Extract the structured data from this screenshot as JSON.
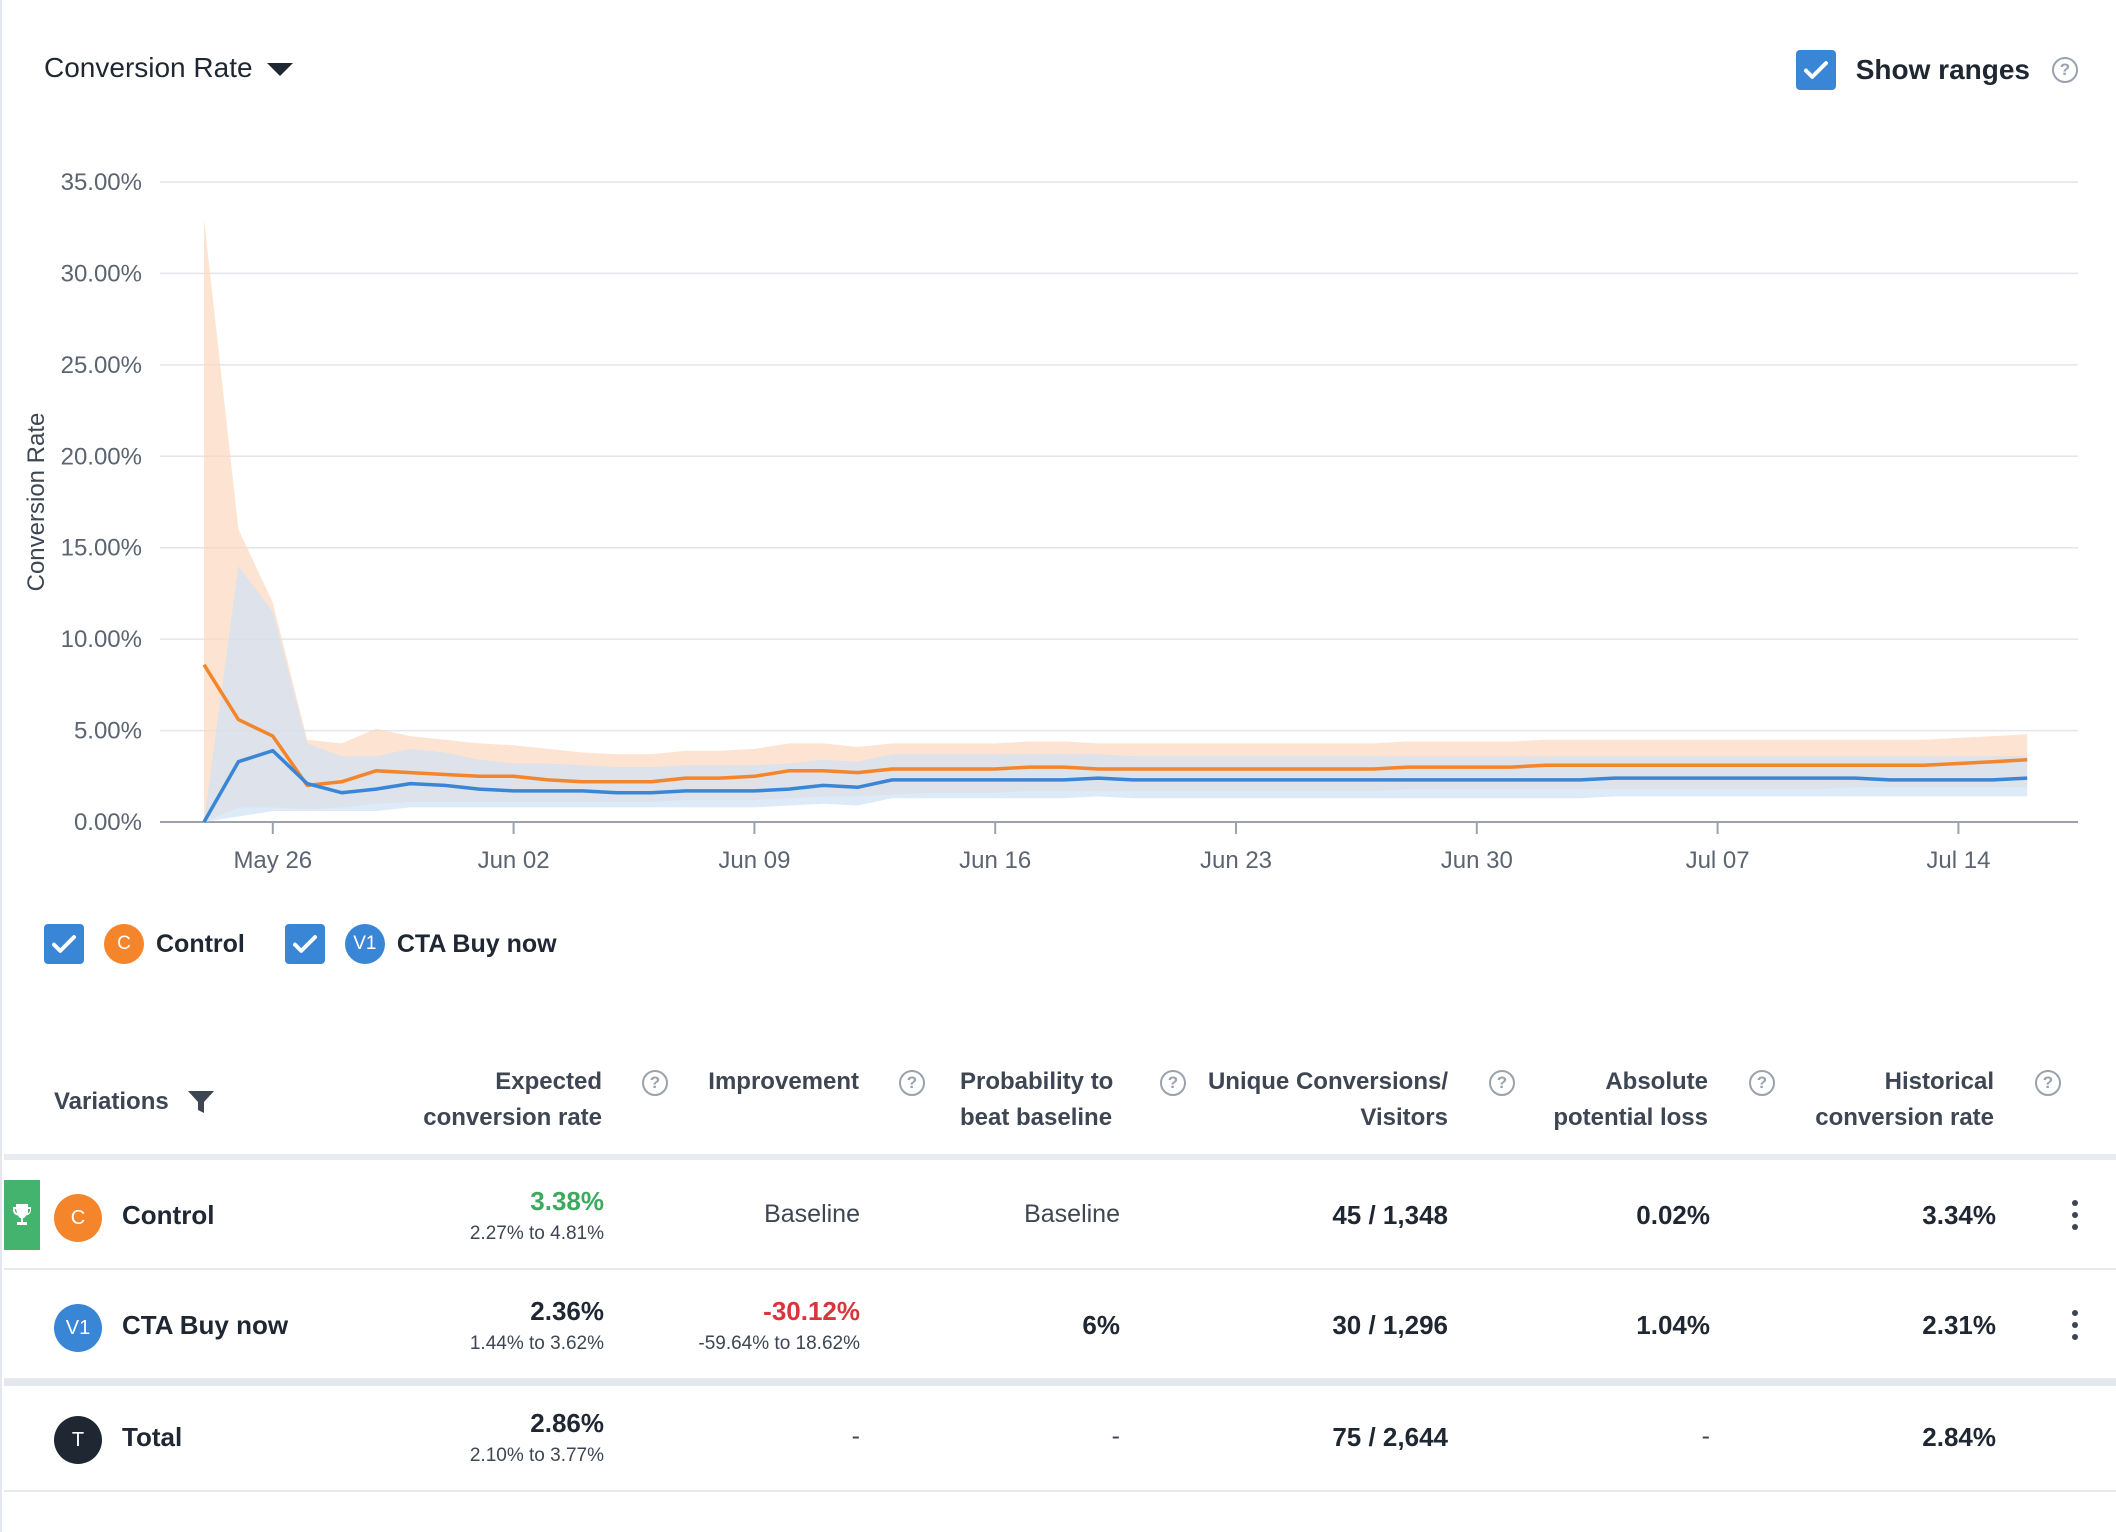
{
  "header": {
    "metric_label": "Conversion Rate",
    "show_ranges_label": "Show ranges",
    "show_ranges_checked": true
  },
  "legend": [
    {
      "badge": "C",
      "name": "Control",
      "color": "#f5852a",
      "checked": true
    },
    {
      "badge": "V1",
      "name": "CTA Buy now",
      "color": "#3a86d6",
      "checked": true
    }
  ],
  "chart_data": {
    "type": "line",
    "ylabel": "Conversion Rate",
    "xlabel": "",
    "ylim": [
      0,
      35
    ],
    "yticks": [
      "0.00%",
      "5.00%",
      "10.00%",
      "15.00%",
      "20.00%",
      "25.00%",
      "30.00%",
      "35.00%"
    ],
    "ytick_values": [
      0,
      5,
      10,
      15,
      20,
      25,
      30,
      35
    ],
    "x": [
      "May 24",
      "May 25",
      "May 26",
      "May 27",
      "May 28",
      "May 29",
      "May 30",
      "May 31",
      "Jun 01",
      "Jun 02",
      "Jun 03",
      "Jun 04",
      "Jun 05",
      "Jun 06",
      "Jun 07",
      "Jun 08",
      "Jun 09",
      "Jun 10",
      "Jun 11",
      "Jun 12",
      "Jun 13",
      "Jun 14",
      "Jun 15",
      "Jun 16",
      "Jun 17",
      "Jun 18",
      "Jun 19",
      "Jun 20",
      "Jun 21",
      "Jun 22",
      "Jun 23",
      "Jun 24",
      "Jun 25",
      "Jun 26",
      "Jun 27",
      "Jun 28",
      "Jun 29",
      "Jun 30",
      "Jul 01",
      "Jul 02",
      "Jul 03",
      "Jul 04",
      "Jul 05",
      "Jul 06",
      "Jul 07",
      "Jul 08",
      "Jul 09",
      "Jul 10",
      "Jul 11",
      "Jul 12",
      "Jul 13",
      "Jul 14",
      "Jul 15",
      "Jul 16"
    ],
    "xticks": [
      "May 26",
      "Jun 02",
      "Jun 09",
      "Jun 16",
      "Jun 23",
      "Jun 30",
      "Jul 07",
      "Jul 14"
    ],
    "grid": true,
    "show_ranges": true,
    "series": [
      {
        "name": "Control",
        "color": "#f5852a",
        "band_color": "#fcd9bf",
        "values": [
          8.6,
          5.6,
          4.7,
          2.0,
          2.2,
          2.8,
          2.7,
          2.6,
          2.5,
          2.5,
          2.3,
          2.2,
          2.2,
          2.2,
          2.4,
          2.4,
          2.5,
          2.8,
          2.8,
          2.7,
          2.9,
          2.9,
          2.9,
          2.9,
          3.0,
          3.0,
          2.9,
          2.9,
          2.9,
          2.9,
          2.9,
          2.9,
          2.9,
          2.9,
          2.9,
          3.0,
          3.0,
          3.0,
          3.0,
          3.1,
          3.1,
          3.1,
          3.1,
          3.1,
          3.1,
          3.1,
          3.1,
          3.1,
          3.1,
          3.1,
          3.1,
          3.2,
          3.3,
          3.4
        ],
        "lower": [
          0.0,
          0.8,
          0.8,
          0.7,
          0.8,
          1.0,
          1.1,
          1.1,
          1.1,
          1.1,
          1.1,
          1.1,
          1.1,
          1.1,
          1.2,
          1.2,
          1.2,
          1.3,
          1.4,
          1.4,
          1.5,
          1.6,
          1.6,
          1.6,
          1.7,
          1.7,
          1.7,
          1.7,
          1.7,
          1.7,
          1.7,
          1.7,
          1.7,
          1.7,
          1.7,
          1.8,
          1.8,
          1.8,
          1.8,
          1.8,
          1.8,
          1.8,
          1.8,
          1.8,
          1.8,
          1.8,
          1.8,
          1.8,
          1.9,
          1.9,
          1.9,
          1.9,
          1.9,
          1.9
        ],
        "upper": [
          33.0,
          16.0,
          12.0,
          4.5,
          4.3,
          5.1,
          4.7,
          4.5,
          4.3,
          4.2,
          4.0,
          3.8,
          3.7,
          3.7,
          3.9,
          3.9,
          4.0,
          4.3,
          4.3,
          4.1,
          4.3,
          4.3,
          4.3,
          4.3,
          4.4,
          4.4,
          4.3,
          4.3,
          4.3,
          4.3,
          4.3,
          4.3,
          4.3,
          4.3,
          4.3,
          4.4,
          4.4,
          4.4,
          4.4,
          4.5,
          4.5,
          4.5,
          4.5,
          4.5,
          4.5,
          4.5,
          4.5,
          4.5,
          4.5,
          4.5,
          4.5,
          4.6,
          4.7,
          4.8
        ]
      },
      {
        "name": "CTA Buy now",
        "color": "#3a86d6",
        "band_color": "#cfe1f5",
        "values": [
          0.0,
          3.3,
          3.9,
          2.1,
          1.6,
          1.8,
          2.1,
          2.0,
          1.8,
          1.7,
          1.7,
          1.7,
          1.6,
          1.6,
          1.7,
          1.7,
          1.7,
          1.8,
          2.0,
          1.9,
          2.3,
          2.3,
          2.3,
          2.3,
          2.3,
          2.3,
          2.4,
          2.3,
          2.3,
          2.3,
          2.3,
          2.3,
          2.3,
          2.3,
          2.3,
          2.3,
          2.3,
          2.3,
          2.3,
          2.3,
          2.3,
          2.4,
          2.4,
          2.4,
          2.4,
          2.4,
          2.4,
          2.4,
          2.4,
          2.3,
          2.3,
          2.3,
          2.3,
          2.4
        ],
        "lower": [
          0.0,
          0.3,
          0.6,
          0.6,
          0.6,
          0.6,
          0.8,
          0.8,
          0.8,
          0.8,
          0.8,
          0.8,
          0.8,
          0.8,
          0.8,
          0.8,
          0.8,
          0.9,
          1.0,
          0.9,
          1.3,
          1.3,
          1.3,
          1.3,
          1.3,
          1.3,
          1.4,
          1.3,
          1.3,
          1.3,
          1.3,
          1.3,
          1.3,
          1.3,
          1.3,
          1.3,
          1.3,
          1.3,
          1.3,
          1.3,
          1.3,
          1.4,
          1.4,
          1.4,
          1.4,
          1.4,
          1.4,
          1.4,
          1.4,
          1.4,
          1.4,
          1.4,
          1.4,
          1.4
        ],
        "upper": [
          0.0,
          14.0,
          11.5,
          4.3,
          3.6,
          3.6,
          4.0,
          3.8,
          3.4,
          3.2,
          3.2,
          3.1,
          3.0,
          3.0,
          3.1,
          3.1,
          3.1,
          3.2,
          3.4,
          3.3,
          3.7,
          3.7,
          3.7,
          3.7,
          3.7,
          3.7,
          3.7,
          3.6,
          3.6,
          3.6,
          3.6,
          3.6,
          3.6,
          3.6,
          3.6,
          3.6,
          3.6,
          3.6,
          3.6,
          3.6,
          3.6,
          3.6,
          3.6,
          3.6,
          3.6,
          3.6,
          3.6,
          3.6,
          3.6,
          3.6,
          3.6,
          3.6,
          3.6,
          3.6
        ]
      }
    ]
  },
  "table": {
    "headers": {
      "variations": "Variations",
      "expected_1": "Expected",
      "expected_2": "conversion rate",
      "improvement": "Improvement",
      "probability_1": "Probability to",
      "probability_2": "beat baseline",
      "unique_1": "Unique Conversions/",
      "unique_2": "Visitors",
      "loss_1": "Absolute",
      "loss_2": "potential loss",
      "historical_1": "Historical",
      "historical_2": "conversion rate"
    },
    "rows": [
      {
        "badge": "C",
        "badge_color": "#f5852a",
        "name": "Control",
        "winner": true,
        "expected": "3.38%",
        "expected_range": "2.27% to 4.81%",
        "improvement": "Baseline",
        "improvement_range": "",
        "probability": "Baseline",
        "conversions": "45 / 1,348",
        "loss": "0.02%",
        "historical": "3.34%"
      },
      {
        "badge": "V1",
        "badge_color": "#3a86d6",
        "name": "CTA Buy now",
        "winner": false,
        "expected": "2.36%",
        "expected_range": "1.44% to 3.62%",
        "improvement": "-30.12%",
        "improvement_range": "-59.64% to 18.62%",
        "probability": "6%",
        "conversions": "30 / 1,296",
        "loss": "1.04%",
        "historical": "2.31%"
      },
      {
        "badge": "T",
        "badge_color": "#1f2733",
        "name": "Total",
        "winner": false,
        "expected": "2.86%",
        "expected_range": "2.10% to 3.77%",
        "improvement": "-",
        "improvement_range": "",
        "probability": "-",
        "conversions": "75 / 2,644",
        "loss": "-",
        "historical": "2.84%"
      }
    ]
  }
}
